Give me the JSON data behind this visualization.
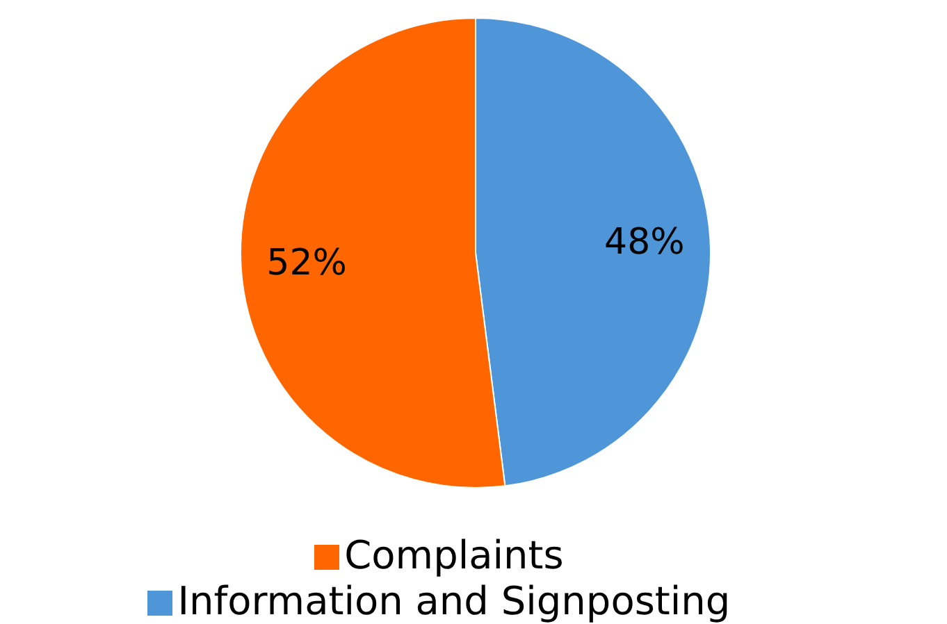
{
  "chart_data": {
    "type": "pie",
    "categories": [
      "Information and Signposting",
      "Complaints"
    ],
    "values": [
      48,
      52
    ],
    "colors": [
      "#4f96d9",
      "#ff6600"
    ],
    "value_labels": [
      "48%",
      "52%"
    ],
    "legend": "bottom"
  }
}
